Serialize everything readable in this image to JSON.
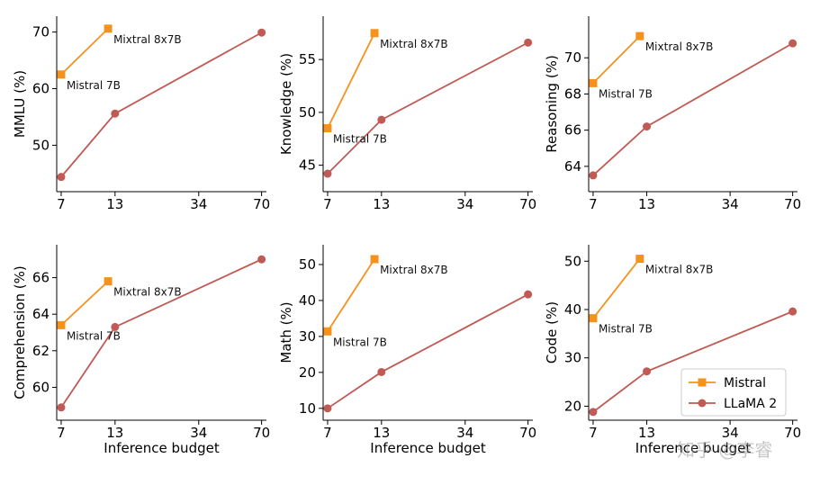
{
  "colors": {
    "mistral": "#F5921E",
    "llama": "#C05A54"
  },
  "watermark": "知乎 @李睿",
  "legend": {
    "placement": "lower-right",
    "entries": [
      "Mistral",
      "LLaMA 2"
    ]
  },
  "chart_data": [
    {
      "type": "line",
      "xlabel": "",
      "ylabel": "MMLU (%)",
      "x_scale": "log",
      "xlim": [
        6.65,
        74
      ],
      "ylim": [
        41.8,
        72.8
      ],
      "xticks": [
        7,
        13,
        34,
        70
      ],
      "yticks": [
        50,
        60,
        70
      ],
      "series": [
        {
          "name": "Mistral",
          "marker": "square",
          "x": [
            7,
            12
          ],
          "values": [
            62.5,
            70.6
          ]
        },
        {
          "name": "LLaMA 2",
          "marker": "circle",
          "x": [
            7,
            13,
            70
          ],
          "values": [
            44.4,
            55.6,
            69.9
          ]
        }
      ],
      "annotations": [
        {
          "text": "Mistral 7B",
          "x": 7,
          "y": 62.5
        },
        {
          "text": "Mixtral 8x7B",
          "x": 12,
          "y": 70.6
        }
      ]
    },
    {
      "type": "line",
      "xlabel": "",
      "ylabel": "Knowledge (%)",
      "x_scale": "log",
      "xlim": [
        6.65,
        74
      ],
      "ylim": [
        42.5,
        59.1
      ],
      "xticks": [
        7,
        13,
        34,
        70
      ],
      "yticks": [
        45,
        50,
        55
      ],
      "series": [
        {
          "name": "Mistral",
          "marker": "square",
          "x": [
            7,
            12
          ],
          "values": [
            48.5,
            57.5
          ]
        },
        {
          "name": "LLaMA 2",
          "marker": "circle",
          "x": [
            7,
            13,
            70
          ],
          "values": [
            44.2,
            49.3,
            56.6
          ]
        }
      ],
      "annotations": [
        {
          "text": "Mistral 7B",
          "x": 7,
          "y": 48.5
        },
        {
          "text": "Mixtral 8x7B",
          "x": 12,
          "y": 57.5
        }
      ]
    },
    {
      "type": "line",
      "xlabel": "",
      "ylabel": "Reasoning (%)",
      "x_scale": "log",
      "xlim": [
        6.65,
        74
      ],
      "ylim": [
        62.6,
        72.3
      ],
      "xticks": [
        7,
        13,
        34,
        70
      ],
      "yticks": [
        64,
        66,
        68,
        70
      ],
      "series": [
        {
          "name": "Mistral",
          "marker": "square",
          "x": [
            7,
            12
          ],
          "values": [
            68.6,
            71.2
          ]
        },
        {
          "name": "LLaMA 2",
          "marker": "circle",
          "x": [
            7,
            13,
            70
          ],
          "values": [
            63.5,
            66.2,
            70.8
          ]
        }
      ],
      "annotations": [
        {
          "text": "Mistral 7B",
          "x": 7,
          "y": 68.6
        },
        {
          "text": "Mixtral 8x7B",
          "x": 12,
          "y": 71.2
        }
      ]
    },
    {
      "type": "line",
      "xlabel": "Inference budget",
      "ylabel": "Comprehension (%)",
      "x_scale": "log",
      "xlim": [
        6.65,
        74
      ],
      "ylim": [
        58.2,
        67.8
      ],
      "xticks": [
        7,
        13,
        34,
        70
      ],
      "yticks": [
        60,
        62,
        64,
        66
      ],
      "series": [
        {
          "name": "Mistral",
          "marker": "square",
          "x": [
            7,
            12
          ],
          "values": [
            63.4,
            65.8
          ]
        },
        {
          "name": "LLaMA 2",
          "marker": "circle",
          "x": [
            7,
            13,
            70
          ],
          "values": [
            58.9,
            63.3,
            67.0
          ]
        }
      ],
      "annotations": [
        {
          "text": "Mistral 7B",
          "x": 7,
          "y": 63.4
        },
        {
          "text": "Mixtral 8x7B",
          "x": 12,
          "y": 65.8
        }
      ]
    },
    {
      "type": "line",
      "xlabel": "Inference budget",
      "ylabel": "Math (%)",
      "x_scale": "log",
      "xlim": [
        6.65,
        74
      ],
      "ylim": [
        6.7,
        55.5
      ],
      "xticks": [
        7,
        13,
        34,
        70
      ],
      "yticks": [
        10,
        20,
        30,
        40,
        50
      ],
      "series": [
        {
          "name": "Mistral",
          "marker": "square",
          "x": [
            7,
            12
          ],
          "values": [
            31.4,
            51.5
          ]
        },
        {
          "name": "LLaMA 2",
          "marker": "circle",
          "x": [
            7,
            13,
            70
          ],
          "values": [
            10.0,
            20.1,
            41.7
          ]
        }
      ],
      "annotations": [
        {
          "text": "Mistral 7B",
          "x": 7,
          "y": 31.4
        },
        {
          "text": "Mixtral 8x7B",
          "x": 12,
          "y": 51.5
        }
      ]
    },
    {
      "type": "line",
      "xlabel": "Inference budget",
      "ylabel": "Code (%)",
      "x_scale": "log",
      "xlim": [
        6.65,
        74
      ],
      "ylim": [
        17.1,
        53.4
      ],
      "xticks": [
        7,
        13,
        34,
        70
      ],
      "yticks": [
        20,
        30,
        40,
        50
      ],
      "series": [
        {
          "name": "Mistral",
          "marker": "square",
          "x": [
            7,
            12
          ],
          "values": [
            38.2,
            50.5
          ]
        },
        {
          "name": "LLaMA 2",
          "marker": "circle",
          "x": [
            7,
            13,
            70
          ],
          "values": [
            18.8,
            27.2,
            39.6
          ]
        }
      ],
      "annotations": [
        {
          "text": "Mistral 7B",
          "x": 7,
          "y": 38.2
        },
        {
          "text": "Mixtral 8x7B",
          "x": 12,
          "y": 50.5
        }
      ]
    }
  ]
}
